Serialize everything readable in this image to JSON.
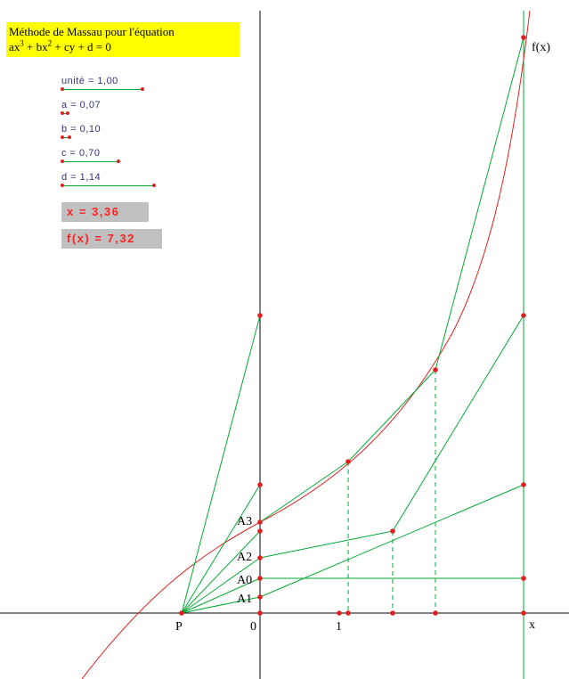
{
  "title": {
    "line1": "Méthode de Massau pour l'équation",
    "line2_parts": [
      "ax",
      "3",
      " + bx",
      "2",
      " + cy + d = 0"
    ]
  },
  "sliders": [
    {
      "id": "unite",
      "label": "unité = 1,00",
      "value": 1.0
    },
    {
      "id": "a",
      "label": "a = 0,07",
      "value": 0.07
    },
    {
      "id": "b",
      "label": "b = 0,10",
      "value": 0.1
    },
    {
      "id": "c",
      "label": "c = 0,70",
      "value": 0.7
    },
    {
      "id": "d",
      "label": "d = 1,14",
      "value": 1.14
    }
  ],
  "results": {
    "x": "x = 3,36",
    "fx": "f(x)  = 7,32"
  },
  "labels": {
    "fx": "f(x)",
    "x": "x",
    "P": "P",
    "zero": "0",
    "one": "1",
    "A0": "A0",
    "A1": "A1",
    "A2": "A2",
    "A3": "A3"
  },
  "colors": {
    "axis": "#000000",
    "construction": "#00aa33",
    "curve": "#e02020",
    "points": "#e02020",
    "title_bg": "#ffff00",
    "result_bg": "#c0c0c0",
    "result_text": "#ff2020",
    "slider_text": "#33337a"
  }
}
